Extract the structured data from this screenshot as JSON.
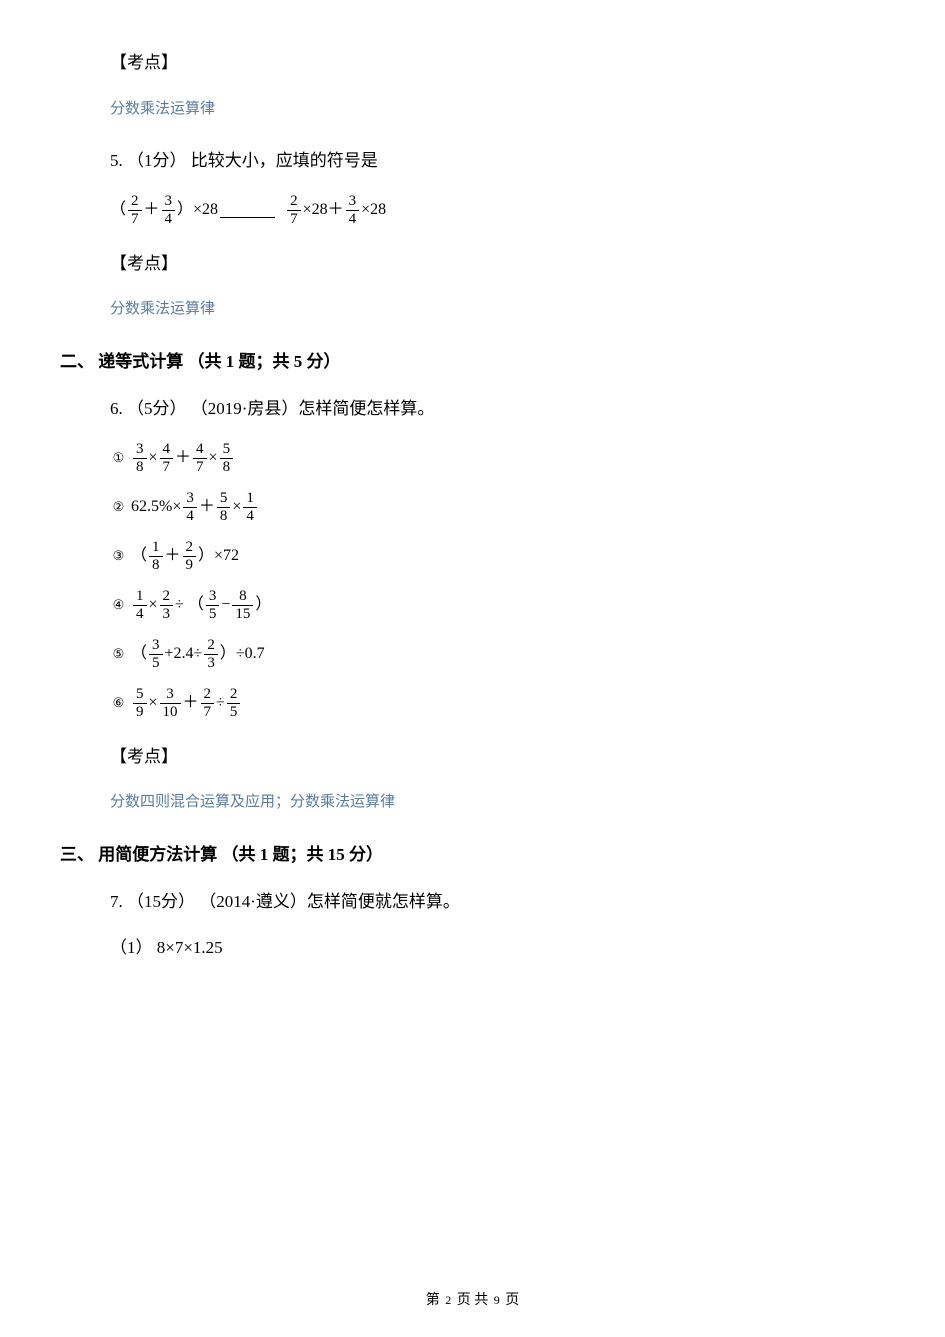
{
  "colors": {
    "tag": "#5b7ca0",
    "text": "#000000",
    "bg": "#ffffff"
  },
  "typography": {
    "body_family": "SimSun",
    "body_size_pt": 12,
    "tag_size_pt": 11,
    "section_bold": true
  },
  "kaodian_label": "【考点】",
  "tag1": "分数乘法运算律",
  "q5": {
    "prefix": "5. （1分） 比较大小，应填的符号是",
    "lhs": {
      "open": "（",
      "a": {
        "num": "2",
        "den": "7"
      },
      "plus": " ＋ ",
      "b": {
        "num": "3",
        "den": "4"
      },
      "close": " ）×28"
    },
    "rhs": {
      "a": {
        "num": "2",
        "den": "7"
      },
      "times28a": "×28",
      "plus": " ＋ ",
      "b": {
        "num": "3",
        "den": "4"
      },
      "times28b": "×28"
    }
  },
  "tag2": "分数乘法运算律",
  "section2_title": "二、 递等式计算 （共 1 题；共 5 分）",
  "q6": {
    "prefix": "6. （5分） （2019·房县）怎样简便怎样算。",
    "items": [
      {
        "circ": "①",
        "parts": [
          {
            "f": {
              "n": "3",
              "d": "8"
            }
          },
          {
            "t": " × "
          },
          {
            "f": {
              "n": "4",
              "d": "7"
            }
          },
          {
            "t": " ＋ "
          },
          {
            "f": {
              "n": "4",
              "d": "7"
            }
          },
          {
            "t": " × "
          },
          {
            "f": {
              "n": "5",
              "d": "8"
            }
          }
        ]
      },
      {
        "circ": "②",
        "parts": [
          {
            "t": "62.5%× "
          },
          {
            "f": {
              "n": "3",
              "d": "4"
            }
          },
          {
            "t": " ＋ "
          },
          {
            "f": {
              "n": "5",
              "d": "8"
            }
          },
          {
            "t": " × "
          },
          {
            "f": {
              "n": "1",
              "d": "4"
            }
          }
        ]
      },
      {
        "circ": "③",
        "parts": [
          {
            "t": "（ "
          },
          {
            "f": {
              "n": "1",
              "d": "8"
            }
          },
          {
            "t": " ＋ "
          },
          {
            "f": {
              "n": "2",
              "d": "9"
            }
          },
          {
            "t": " ）×72"
          }
        ]
      },
      {
        "circ": "④",
        "parts": [
          {
            "f": {
              "n": "1",
              "d": "4"
            }
          },
          {
            "t": " × "
          },
          {
            "f": {
              "n": "2",
              "d": "3"
            }
          },
          {
            "t": " ÷ （ "
          },
          {
            "f": {
              "n": "3",
              "d": "5"
            }
          },
          {
            "t": " − "
          },
          {
            "f": {
              "n": "8",
              "d": "15"
            }
          },
          {
            "t": " ）"
          }
        ]
      },
      {
        "circ": "⑤",
        "parts": [
          {
            "t": "（ "
          },
          {
            "f": {
              "n": "3",
              "d": "5"
            }
          },
          {
            "t": " +2.4÷ "
          },
          {
            "f": {
              "n": "2",
              "d": "3"
            }
          },
          {
            "t": " ）÷0.7"
          }
        ]
      },
      {
        "circ": "⑥",
        "parts": [
          {
            "f": {
              "n": "5",
              "d": "9"
            }
          },
          {
            "t": " × "
          },
          {
            "f": {
              "n": "3",
              "d": "10"
            }
          },
          {
            "t": " ＋ "
          },
          {
            "f": {
              "n": "2",
              "d": "7"
            }
          },
          {
            "t": " ÷ "
          },
          {
            "f": {
              "n": "2",
              "d": "5"
            }
          }
        ]
      }
    ]
  },
  "tag3": "分数四则混合运算及应用；分数乘法运算律",
  "section3_title": "三、 用简便方法计算 （共 1 题；共 15 分）",
  "q7": {
    "prefix": "7. （15分） （2014·遵义）怎样简便就怎样算。",
    "sub1": "（1） 8×7×1.25"
  },
  "footer": {
    "pre": "第 ",
    "cur": "2",
    "mid": " 页 共 ",
    "total": "9",
    "post": " 页"
  }
}
